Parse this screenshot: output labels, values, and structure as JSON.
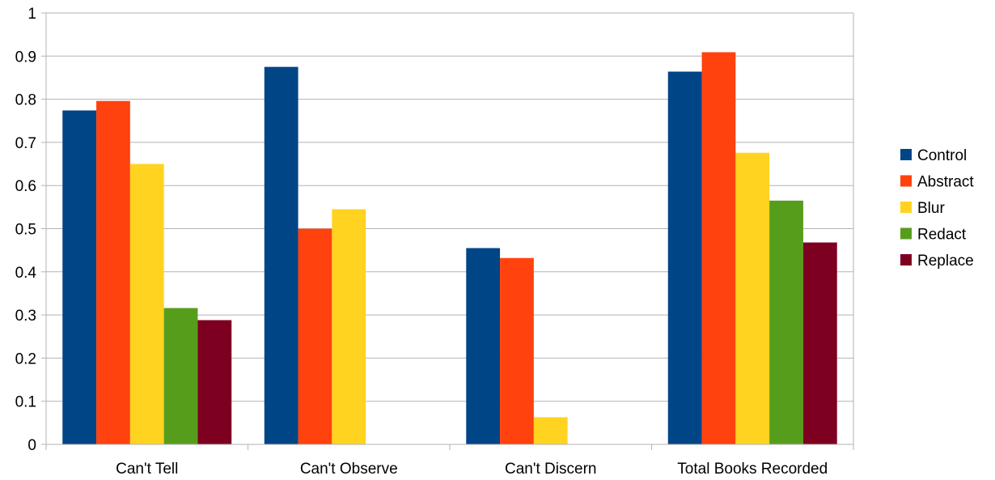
{
  "chart_data": {
    "type": "bar",
    "title": "",
    "xlabel": "",
    "ylabel": "",
    "ylim": [
      0,
      1
    ],
    "yticks": [
      "0",
      "0.1",
      "0.2",
      "0.3",
      "0.4",
      "0.5",
      "0.6",
      "0.7",
      "0.8",
      "0.9",
      "1"
    ],
    "grid": true,
    "legend_position": "right",
    "categories": [
      "Can't Tell",
      "Can't Observe",
      "Can't Discern",
      "Total Books Recorded"
    ],
    "series": [
      {
        "name": "Control",
        "color": "#004586",
        "values": [
          0.774,
          0.875,
          0.455,
          0.864
        ]
      },
      {
        "name": "Abstract",
        "color": "#ff420e",
        "values": [
          0.796,
          0.5,
          0.432,
          0.909
        ]
      },
      {
        "name": "Blur",
        "color": "#ffd320",
        "values": [
          0.65,
          0.545,
          0.063,
          0.676
        ]
      },
      {
        "name": "Redact",
        "color": "#579d1c",
        "values": [
          0.316,
          0.0,
          0.0,
          0.565
        ]
      },
      {
        "name": "Replace",
        "color": "#7e0021",
        "values": [
          0.288,
          0.0,
          0.0,
          0.468
        ]
      }
    ]
  }
}
